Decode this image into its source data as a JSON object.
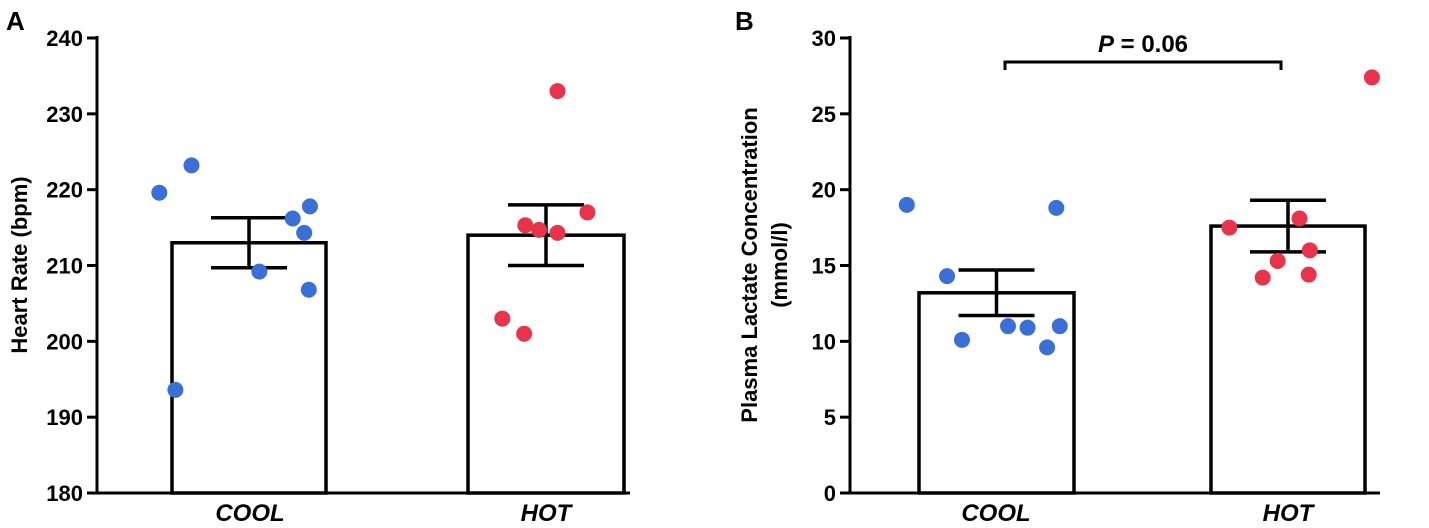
{
  "chart_data": [
    {
      "panel": "A",
      "type": "bar",
      "ylabel": "Heart Rate (bpm)",
      "ylim": [
        180,
        240
      ],
      "yticks": [
        180,
        190,
        200,
        210,
        220,
        230,
        240
      ],
      "categories": [
        "COOL",
        "HOT"
      ],
      "means": [
        213,
        214
      ],
      "sem": [
        3.3,
        4.0
      ],
      "points": [
        [
          223.2,
          219.6,
          217.8,
          216.2,
          214.3,
          209.2,
          206.8,
          193.6
        ],
        [
          233.0,
          217.0,
          215.3,
          214.7,
          214.3,
          203.0,
          201.0
        ]
      ],
      "annotation": ""
    },
    {
      "panel": "B",
      "type": "bar",
      "ylabel": [
        "Plasma Lactate Concentration",
        "(mmol/l)"
      ],
      "ylim": [
        0,
        30
      ],
      "yticks": [
        0,
        5,
        10,
        15,
        20,
        25,
        30
      ],
      "categories": [
        "COOL",
        "HOT"
      ],
      "means": [
        13.2,
        17.6
      ],
      "sem": [
        1.5,
        1.7
      ],
      "points": [
        [
          19.0,
          18.8,
          14.3,
          11.0,
          11.0,
          10.9,
          10.1,
          9.6
        ],
        [
          27.4,
          18.1,
          17.5,
          16.0,
          15.3,
          14.4,
          14.2
        ]
      ],
      "annotation": "P = 0.06"
    }
  ],
  "colors": {
    "cool": "#3b6fd8",
    "hot": "#e8334a",
    "axis": "#000000",
    "bar_fill": "#ffffff"
  }
}
